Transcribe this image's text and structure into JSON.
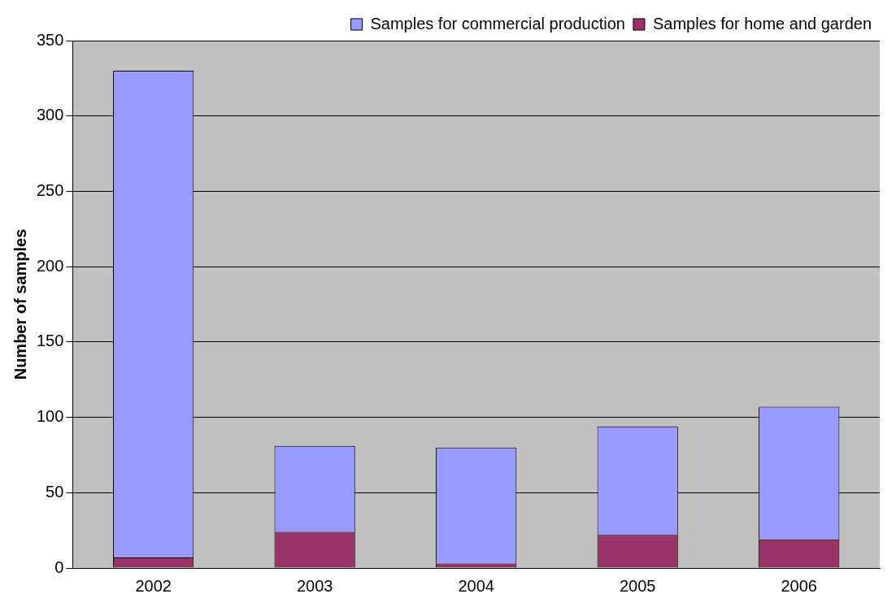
{
  "chart_data": {
    "type": "bar",
    "stacked": true,
    "ylabel": "Number of samples",
    "categories": [
      "2002",
      "2003",
      "2004",
      "2005",
      "2006"
    ],
    "series": [
      {
        "name": "Samples for home and garden",
        "color": "#993366",
        "values": [
          7,
          24,
          3,
          22,
          19
        ]
      },
      {
        "name": "Samples for commercial production",
        "color": "#9999ff",
        "values": [
          323,
          57,
          77,
          72,
          88
        ]
      }
    ],
    "ylim": [
      0,
      350
    ],
    "yticks": [
      0,
      50,
      100,
      150,
      200,
      250,
      300,
      350
    ],
    "grid": "y",
    "legend": "top right"
  }
}
